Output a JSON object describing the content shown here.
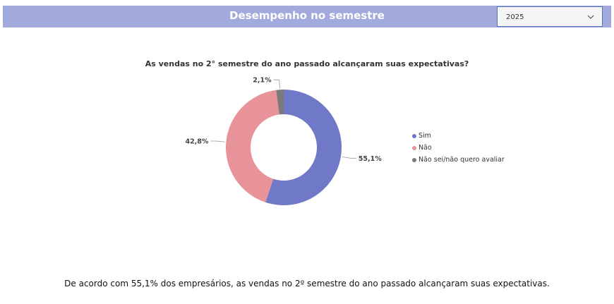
{
  "header": {
    "title": "Desempenho no semestre",
    "year_selected": "2025"
  },
  "chart_data": {
    "type": "pie",
    "donut": true,
    "title": "As vendas no 2° semestre do ano passado alcançaram suas expectativas?",
    "categories": [
      "Sim",
      "Não",
      "Não sei/não quero avaliar"
    ],
    "values": [
      55.1,
      42.8,
      2.1
    ],
    "labels": [
      "55,1%",
      "42,8%",
      "2,1%"
    ],
    "colors": [
      "#7079c8",
      "#e8929a",
      "#7b7b7b"
    ],
    "legend_position": "right"
  },
  "footer": {
    "text": "De acordo com 55,1% dos empresários, as vendas no 2º semestre do ano passado alcançaram suas expectativas."
  }
}
